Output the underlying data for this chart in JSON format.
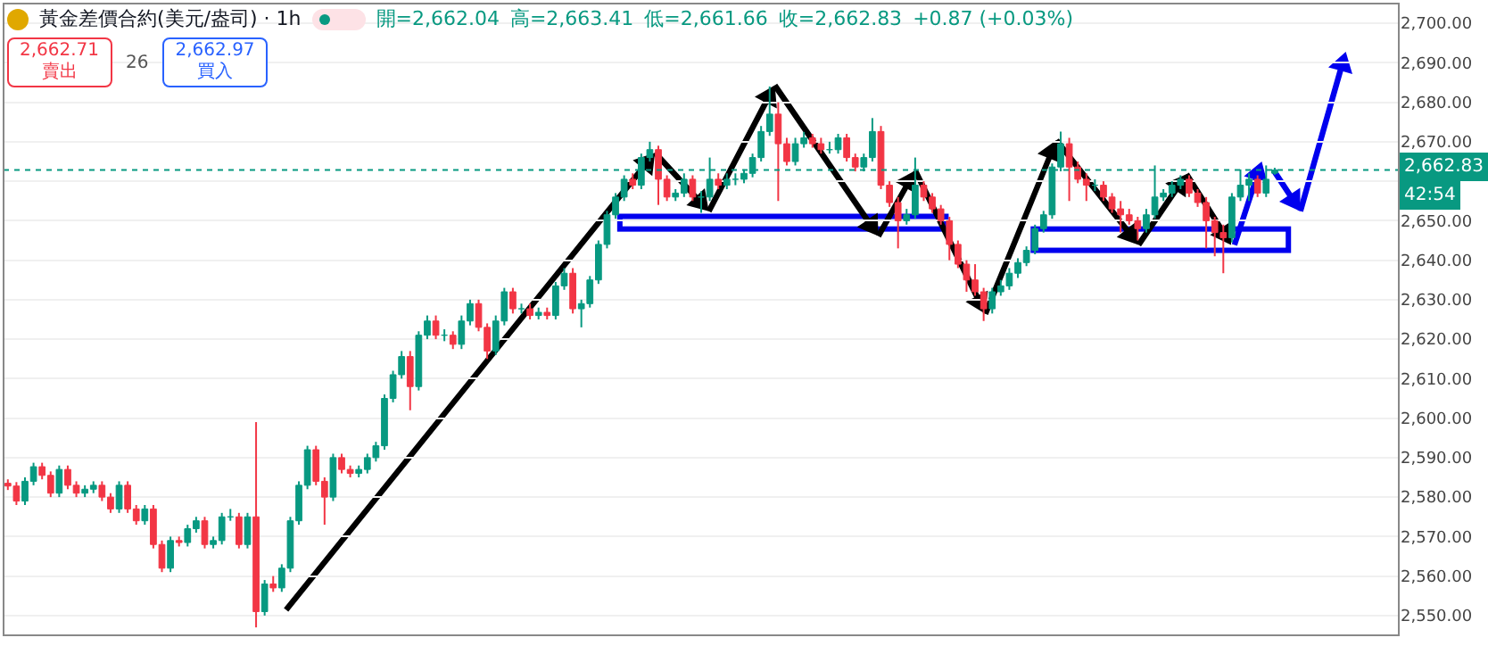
{
  "chart_data": {
    "type": "candlestick",
    "title": "黃金差價合約(美元/盎司) · 1h",
    "categories": [
      null,
      null,
      null,
      null,
      null,
      null,
      null,
      null,
      null,
      null,
      null,
      null,
      null,
      null,
      null,
      null,
      null,
      null,
      null,
      null,
      null,
      null,
      null,
      null,
      null,
      null,
      null,
      null,
      null,
      null,
      null,
      null,
      null,
      null,
      null,
      null,
      null,
      null,
      null,
      null,
      null,
      null,
      null,
      null,
      null,
      null,
      null,
      null,
      null,
      null,
      null,
      null,
      null,
      null,
      null,
      null,
      null,
      null,
      null,
      null,
      null,
      null,
      null,
      null,
      null,
      null,
      null,
      null,
      null,
      null,
      null,
      null,
      null,
      null,
      null,
      null,
      null,
      null,
      null,
      null,
      null,
      null,
      null,
      null,
      null,
      null,
      null,
      null,
      null,
      null,
      null,
      null,
      null,
      null,
      null,
      null,
      null,
      null,
      null,
      null,
      null,
      null,
      null,
      null,
      null,
      null,
      null,
      null,
      null,
      null,
      null,
      null,
      null,
      null,
      null,
      null,
      null,
      null,
      null,
      null,
      null,
      null,
      null,
      null,
      null,
      null,
      null,
      null,
      null,
      null,
      null,
      null,
      null,
      null,
      null,
      null,
      null,
      null,
      null,
      null,
      null,
      null,
      null,
      null,
      null,
      null,
      null,
      null,
      null,
      null,
      null,
      null,
      null,
      null,
      null,
      null,
      null,
      null,
      null,
      null,
      null,
      null,
      null
    ],
    "ohlc": [
      [
        2583.5,
        2584.5,
        2581.8,
        2582.8
      ],
      [
        2582.8,
        2583.8,
        2578,
        2579
      ],
      [
        2579,
        2585,
        2578,
        2584
      ],
      [
        2584,
        2588.7,
        2583,
        2587.7
      ],
      [
        2587.7,
        2588.7,
        2584.5,
        2585.5
      ],
      [
        2585.5,
        2586.5,
        2580,
        2581
      ],
      [
        2581,
        2588,
        2580,
        2587
      ],
      [
        2587,
        2588,
        2582,
        2583
      ],
      [
        2583,
        2584,
        2580,
        2581
      ],
      [
        2581,
        2583,
        2580,
        2582
      ],
      [
        2582,
        2584,
        2581,
        2583
      ],
      [
        2583,
        2584,
        2579,
        2580
      ],
      [
        2580,
        2581,
        2576,
        2577
      ],
      [
        2577,
        2584,
        2576,
        2583
      ],
      [
        2583,
        2584,
        2576,
        2577
      ],
      [
        2577,
        2578,
        2573,
        2574
      ],
      [
        2574,
        2578,
        2573,
        2577
      ],
      [
        2577,
        2578,
        2567,
        2568
      ],
      [
        2568,
        2569,
        2561,
        2562
      ],
      [
        2562,
        2570,
        2561,
        2569
      ],
      [
        2569,
        2570,
        2567.5,
        2568.5
      ],
      [
        2568.5,
        2573,
        2567.5,
        2572
      ],
      [
        2572,
        2575,
        2571,
        2574
      ],
      [
        2574,
        2575,
        2567,
        2568
      ],
      [
        2568,
        2570,
        2567,
        2569
      ],
      [
        2569,
        2576,
        2568,
        2575
      ],
      [
        2575,
        2577,
        2574,
        2575
      ],
      [
        2575,
        2576,
        2567,
        2568
      ],
      [
        2568,
        2576,
        2567,
        2575
      ],
      [
        2575,
        2599,
        2547,
        2551
      ],
      [
        2551,
        2559,
        2550,
        2558
      ],
      [
        2558,
        2560,
        2556,
        2557
      ],
      [
        2557,
        2563,
        2556,
        2562
      ],
      [
        2562,
        2575,
        2561,
        2574
      ],
      [
        2574,
        2584,
        2573,
        2583
      ],
      [
        2583,
        2593,
        2582,
        2592
      ],
      [
        2592,
        2593,
        2583,
        2584
      ],
      [
        2584,
        2585,
        2573,
        2580
      ],
      [
        2580,
        2591,
        2579,
        2590
      ],
      [
        2590,
        2591,
        2586,
        2587
      ],
      [
        2587,
        2588,
        2585,
        2586
      ],
      [
        2586,
        2588,
        2585,
        2587
      ],
      [
        2587,
        2591,
        2586,
        2590
      ],
      [
        2590,
        2594,
        2589,
        2593
      ],
      [
        2593,
        2606,
        2592,
        2605
      ],
      [
        2605,
        2612,
        2604,
        2611
      ],
      [
        2611,
        2617,
        2610,
        2615.6
      ],
      [
        2615.6,
        2617,
        2602,
        2608
      ],
      [
        2608,
        2622,
        2607,
        2621
      ],
      [
        2621,
        2626,
        2620,
        2624.6
      ],
      [
        2624.6,
        2626,
        2620,
        2621
      ],
      [
        2621,
        2622.5,
        2619.5,
        2621
      ],
      [
        2621,
        2622,
        2617.5,
        2618.7
      ],
      [
        2618.7,
        2626,
        2617.5,
        2624.6
      ],
      [
        2624.6,
        2630,
        2623.5,
        2629
      ],
      [
        2629,
        2630,
        2622,
        2623
      ],
      [
        2623,
        2624,
        2615,
        2617
      ],
      [
        2617,
        2626,
        2616,
        2624.6
      ],
      [
        2624.6,
        2633,
        2623.5,
        2632
      ],
      [
        2632,
        2633,
        2626.5,
        2627.7
      ],
      [
        2627.7,
        2629,
        2626.5,
        2627.7
      ],
      [
        2627.7,
        2629,
        2625,
        2626
      ],
      [
        2626,
        2628,
        2625,
        2626.8
      ],
      [
        2626.8,
        2628,
        2625,
        2626
      ],
      [
        2626,
        2634.5,
        2625,
        2633.5
      ],
      [
        2633.5,
        2638,
        2632.5,
        2636.7
      ],
      [
        2636.7,
        2638,
        2626.5,
        2627.7
      ],
      [
        2627.7,
        2630,
        2623,
        2629
      ],
      [
        2629,
        2636,
        2628,
        2635
      ],
      [
        2635,
        2645,
        2634,
        2644
      ],
      [
        2644,
        2652.5,
        2643,
        2651.5
      ],
      [
        2651.5,
        2657,
        2650.5,
        2656
      ],
      [
        2656,
        2661.5,
        2655,
        2660.5
      ],
      [
        2660.5,
        2662,
        2658,
        2659
      ],
      [
        2659,
        2667,
        2658,
        2666
      ],
      [
        2666,
        2670,
        2665,
        2668
      ],
      [
        2668,
        2669,
        2654,
        2660.5
      ],
      [
        2660.5,
        2661.5,
        2655,
        2656
      ],
      [
        2656,
        2658,
        2655,
        2657
      ],
      [
        2657,
        2662,
        2656,
        2660.5
      ],
      [
        2660.5,
        2661.5,
        2655,
        2656
      ],
      [
        2656,
        2657.5,
        2652,
        2656
      ],
      [
        2656,
        2666,
        2655,
        2660.5
      ],
      [
        2660.5,
        2662,
        2658,
        2659
      ],
      [
        2659,
        2662,
        2658,
        2660.5
      ],
      [
        2660.5,
        2662,
        2659,
        2660.5
      ],
      [
        2660.5,
        2663,
        2659.5,
        2662
      ],
      [
        2662,
        2667,
        2661,
        2666
      ],
      [
        2666,
        2674,
        2665,
        2672.6
      ],
      [
        2672.6,
        2684,
        2671.5,
        2677
      ],
      [
        2677,
        2680,
        2655,
        2669.5
      ],
      [
        2669.5,
        2671,
        2664,
        2665
      ],
      [
        2665,
        2671,
        2664,
        2669.5
      ],
      [
        2669.5,
        2672.5,
        2668.5,
        2671
      ],
      [
        2671,
        2672,
        2668.5,
        2669.5
      ],
      [
        2669.5,
        2671,
        2667,
        2668
      ],
      [
        2668,
        2670,
        2667,
        2668
      ],
      [
        2668,
        2672,
        2667,
        2671
      ],
      [
        2671,
        2672,
        2665,
        2666
      ],
      [
        2666,
        2667,
        2662.5,
        2663.6
      ],
      [
        2663.6,
        2667,
        2662.5,
        2666
      ],
      [
        2666,
        2676,
        2665,
        2672.6
      ],
      [
        2672.6,
        2674,
        2658,
        2659
      ],
      [
        2659,
        2660,
        2653.5,
        2654.6
      ],
      [
        2654.6,
        2656,
        2643,
        2650
      ],
      [
        2650,
        2653,
        2649,
        2651.5
      ],
      [
        2651.5,
        2666,
        2650.5,
        2659
      ],
      [
        2659,
        2660,
        2655,
        2656
      ],
      [
        2656,
        2657,
        2652,
        2653
      ],
      [
        2653,
        2654,
        2649,
        2650
      ],
      [
        2650,
        2651,
        2640,
        2644
      ],
      [
        2644,
        2645,
        2638,
        2639
      ],
      [
        2639,
        2640,
        2632,
        2635
      ],
      [
        2635,
        2639,
        2631,
        2632
      ],
      [
        2632,
        2633,
        2624.6,
        2627.7
      ],
      [
        2627.7,
        2633,
        2626.5,
        2632
      ],
      [
        2632,
        2635,
        2631,
        2633.5
      ],
      [
        2633.5,
        2638,
        2632.5,
        2636.7
      ],
      [
        2636.7,
        2640.5,
        2635.5,
        2639.4
      ],
      [
        2639.4,
        2643.5,
        2638.5,
        2642.5
      ],
      [
        2642.5,
        2649,
        2641.5,
        2648
      ],
      [
        2648,
        2652.5,
        2647,
        2651.5
      ],
      [
        2651.5,
        2664.5,
        2650.5,
        2663.6
      ],
      [
        2663.6,
        2672.6,
        2662.5,
        2669.5
      ],
      [
        2669.5,
        2671,
        2655,
        2663.6
      ],
      [
        2663.6,
        2665,
        2659.5,
        2660.5
      ],
      [
        2660.5,
        2662,
        2655,
        2659
      ],
      [
        2659,
        2660.5,
        2657.5,
        2659
      ],
      [
        2659,
        2660,
        2655,
        2656
      ],
      [
        2656,
        2657,
        2652,
        2653
      ],
      [
        2653,
        2655,
        2647,
        2651.5
      ],
      [
        2651.5,
        2653,
        2649,
        2650
      ],
      [
        2650,
        2651,
        2645,
        2648
      ],
      [
        2648,
        2653,
        2647,
        2651.5
      ],
      [
        2651.5,
        2664,
        2650.5,
        2656
      ],
      [
        2656,
        2658,
        2655,
        2657
      ],
      [
        2657,
        2660,
        2656,
        2659
      ],
      [
        2659,
        2661.5,
        2658,
        2660.5
      ],
      [
        2660.5,
        2661.5,
        2656,
        2657
      ],
      [
        2657,
        2658,
        2653.5,
        2654.6
      ],
      [
        2654.6,
        2656,
        2643,
        2650
      ],
      [
        2650,
        2651,
        2641,
        2647
      ],
      [
        2647,
        2649,
        2636.7,
        2645.7
      ],
      [
        2645.7,
        2657,
        2644.5,
        2656
      ],
      [
        2656,
        2663,
        2655,
        2659
      ],
      [
        2659,
        2662,
        2655,
        2660.5
      ],
      [
        2660.5,
        2661.5,
        2656,
        2657
      ],
      [
        2657,
        2664,
        2656,
        2660.5
      ],
      [
        2662.04,
        2663.41,
        2661.66,
        2662.83
      ],
      null,
      null,
      null,
      null,
      null,
      null,
      null,
      null,
      null,
      null,
      null,
      null,
      null,
      null
    ],
    "ylim": [
      2545,
      2705
    ],
    "yticks": [
      {
        "value": 2550,
        "label": "2,550.00"
      },
      {
        "value": 2560,
        "label": "2,560.00"
      },
      {
        "value": 2570,
        "label": "2,570.00"
      },
      {
        "value": 2580,
        "label": "2,580.00"
      },
      {
        "value": 2590,
        "label": "2,590.00"
      },
      {
        "value": 2600,
        "label": "2,600.00"
      },
      {
        "value": 2610,
        "label": "2,610.00"
      },
      {
        "value": 2620,
        "label": "2,620.00"
      },
      {
        "value": 2630,
        "label": "2,630.00"
      },
      {
        "value": 2640,
        "label": "2,640.00"
      },
      {
        "value": 2650,
        "label": "2,650.00"
      },
      {
        "value": 2660,
        "label": null
      },
      {
        "value": 2670,
        "label": "2,670.00"
      },
      {
        "value": 2680,
        "label": "2,680.00"
      },
      {
        "value": 2690,
        "label": "2,690.00"
      },
      {
        "value": 2700,
        "label": "2,700.00"
      }
    ],
    "grid": "y",
    "tick_labels": "y",
    "ref_lines": [
      {
        "axis": "y",
        "value": 2662.83,
        "label": "2,662.83",
        "color": "#089981",
        "line_style": "dotted"
      }
    ],
    "annotations": [
      "開=2,662.04",
      "高=2,663.41",
      "低=2,661.66",
      "收=2,662.83",
      "+0.87 (+0.03%)",
      "2,662.71",
      "賣出",
      "26",
      "2,662.97",
      "買入",
      "42:54"
    ]
  }
}
